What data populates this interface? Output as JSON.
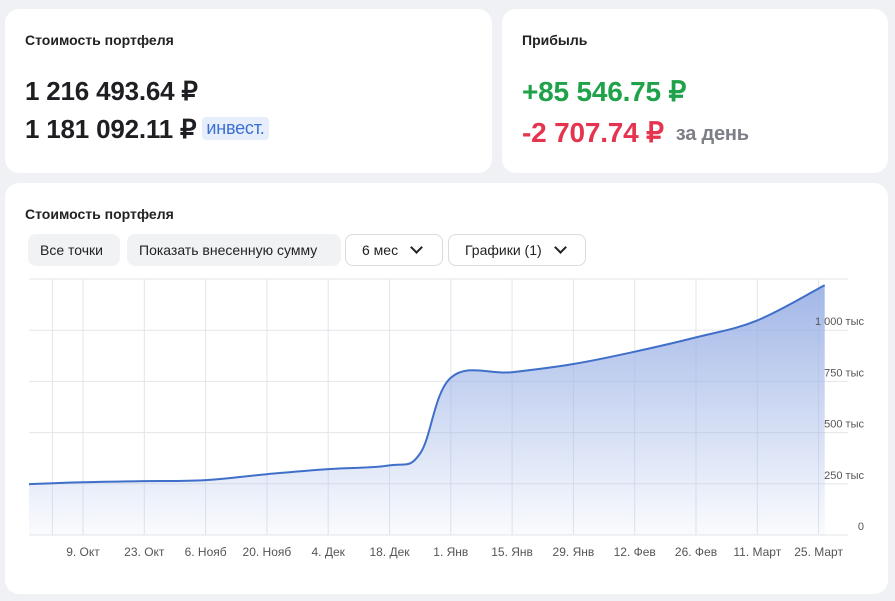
{
  "portfolio_card": {
    "title": "Стоимость портфеля",
    "total_value": "1 216 493.64 ₽",
    "invested_value": "1 181 092.11 ₽",
    "invested_badge": "инвест."
  },
  "profit_card": {
    "title": "Прибыль",
    "total_profit": "+85 546.75 ₽",
    "day_profit": "-2 707.74 ₽",
    "day_suffix": "за день",
    "colors": {
      "positive": "#1fa24a",
      "negative": "#e5344f"
    }
  },
  "chart_card": {
    "title": "Стоимость портфеля",
    "controls": {
      "all_points": "Все точки",
      "show_deposit": "Показать внесенную сумму",
      "period": "6 мес",
      "charts": "Графики (1)"
    }
  },
  "chart_data": {
    "type": "area",
    "title": "",
    "xlabel": "",
    "ylabel": "",
    "x_ticks": [
      "9. Окт",
      "23. Окт",
      "6. Нояб",
      "20. Нояб",
      "4. Дек",
      "18. Дек",
      "1. Янв",
      "15. Янв",
      "29. Янв",
      "12. Фев",
      "26. Фев",
      "11. Март",
      "25. Март"
    ],
    "y_ticks": [
      "0",
      "250 тыс",
      "500 тыс",
      "750 тыс",
      "1 000 тыс"
    ],
    "y_tick_values": [
      0,
      250,
      500,
      750,
      1000
    ],
    "ylim": [
      0,
      1250
    ],
    "y_unit": "тыс ₽",
    "grid": true,
    "line_color": "#3f6fc9",
    "fill_color": "#9db3e6",
    "series": [
      {
        "x_index": [
          -0.95,
          0,
          1,
          2,
          3,
          4,
          5,
          5.5,
          6,
          7,
          8,
          9,
          10,
          11,
          12.1
        ],
        "values": [
          248,
          258,
          263,
          268,
          297,
          322,
          340,
          398,
          768,
          795,
          835,
          895,
          965,
          1048,
          1220
        ]
      }
    ]
  }
}
